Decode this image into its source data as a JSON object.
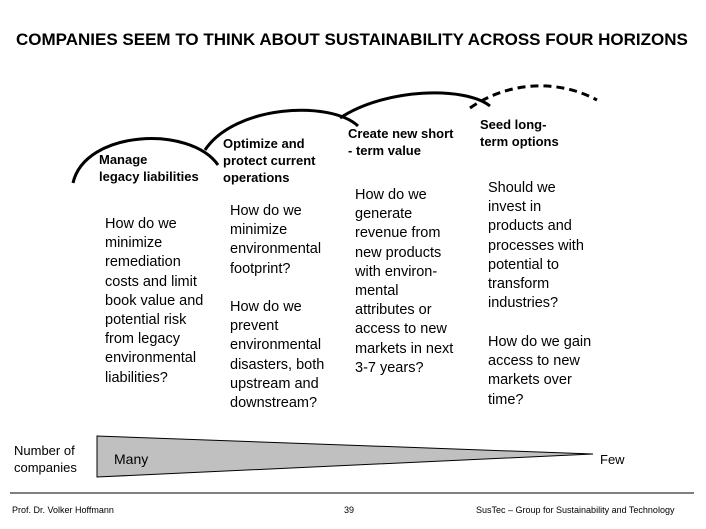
{
  "title": "COMPANIES SEEM TO THINK ABOUT SUSTAINABILITY ACROSS FOUR HORIZONS",
  "horizons": [
    {
      "label": "Manage\nlegacy liabilities",
      "questions": [
        "How do we\nminimize\nremediation\ncosts and limit\nbook value and\npotential risk\nfrom legacy\nenvironmental\nliabilities?"
      ]
    },
    {
      "label": "Optimize and\nprotect current\noperations",
      "questions": [
        "How do we\nminimize\nenvironmental\nfootprint?",
        "How do we\nprevent\nenvironmental\ndisasters, both\nupstream and\ndownstream?"
      ]
    },
    {
      "label": "Create new short\n- term value",
      "questions": [
        "How do we\ngenerate\nrevenue from\nnew products\nwith environ-\nmental\nattributes or\naccess to new\nmarkets in next\n3-7 years?"
      ]
    },
    {
      "label": "Seed long-\nterm options",
      "questions": [
        "Should we\ninvest in\nproducts and\nprocesses with\npotential to\ntransform\nindustries?",
        "How do we gain\naccess to new\nmarkets over\ntime?"
      ]
    }
  ],
  "wedge": {
    "axis_label": "Number of\ncompanies",
    "start_label": "Many",
    "end_label": "Few"
  },
  "footer": {
    "author": "Prof. Dr. Volker Hoffmann",
    "page": "39",
    "org": "SusTec – Group for Sustainability and Technology"
  }
}
